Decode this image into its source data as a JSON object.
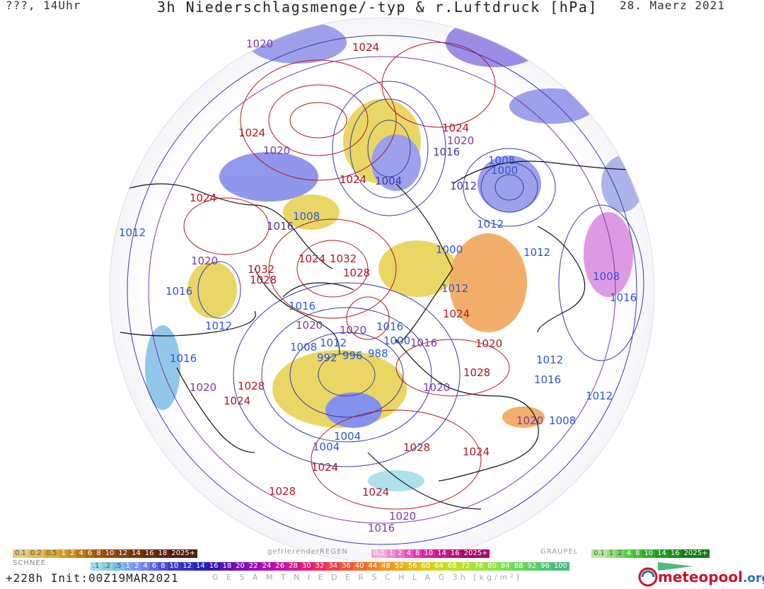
{
  "header": {
    "left": "???, 14Uhr",
    "title": "3h Niederschlagsmenge/-typ & r.Luftdruck [hPa]",
    "date": "28. Maerz 2021"
  },
  "map": {
    "background": "#ffffff",
    "isobar_colors": {
      "high": "#b0171f",
      "low": "#3a3aa8",
      "mid": "#7a3aa8",
      "lowblue": "#2d55d8"
    },
    "pressure_labels": [
      {
        "text": "1020",
        "tone": "mid"
      },
      {
        "text": "1024",
        "tone": "high"
      },
      {
        "text": "1024",
        "tone": "high"
      },
      {
        "text": "1020",
        "tone": "mid"
      },
      {
        "text": "1024",
        "tone": "high"
      },
      {
        "text": "1004",
        "tone": "low"
      },
      {
        "text": "1024",
        "tone": "high"
      },
      {
        "text": "1020",
        "tone": "mid"
      },
      {
        "text": "1016",
        "tone": "low"
      },
      {
        "text": "1012",
        "tone": "low"
      },
      {
        "text": "1008",
        "tone": "lowblue"
      },
      {
        "text": "1000",
        "tone": "lowblue"
      },
      {
        "text": "1012",
        "tone": "lowblue"
      },
      {
        "text": "1024",
        "tone": "high"
      },
      {
        "text": "1008",
        "tone": "lowblue"
      },
      {
        "text": "1016",
        "tone": "low"
      },
      {
        "text": "1012",
        "tone": "lowblue"
      },
      {
        "text": "1020",
        "tone": "mid"
      },
      {
        "text": "1032",
        "tone": "high"
      },
      {
        "text": "1024",
        "tone": "high"
      },
      {
        "text": "1032",
        "tone": "high"
      },
      {
        "text": "1028",
        "tone": "high"
      },
      {
        "text": "1028",
        "tone": "high"
      },
      {
        "text": "1016",
        "tone": "lowblue"
      },
      {
        "text": "1000",
        "tone": "lowblue"
      },
      {
        "text": "1012",
        "tone": "lowblue"
      },
      {
        "text": "1012",
        "tone": "lowblue"
      },
      {
        "text": "1008",
        "tone": "lowblue"
      },
      {
        "text": "1016",
        "tone": "lowblue"
      },
      {
        "text": "1024",
        "tone": "high"
      },
      {
        "text": "1016",
        "tone": "lowblue"
      },
      {
        "text": "1012",
        "tone": "lowblue"
      },
      {
        "text": "1016",
        "tone": "lowblue"
      },
      {
        "text": "1020",
        "tone": "mid"
      },
      {
        "text": "1020",
        "tone": "mid"
      },
      {
        "text": "1016",
        "tone": "mid"
      },
      {
        "text": "1012",
        "tone": "lowblue"
      },
      {
        "text": "1008",
        "tone": "lowblue"
      },
      {
        "text": "1000",
        "tone": "lowblue"
      },
      {
        "text": "992",
        "tone": "lowblue"
      },
      {
        "text": "996",
        "tone": "lowblue"
      },
      {
        "text": "988",
        "tone": "lowblue"
      },
      {
        "text": "1020",
        "tone": "high"
      },
      {
        "text": "1012",
        "tone": "lowblue"
      },
      {
        "text": "1016",
        "tone": "lowblue"
      },
      {
        "text": "1016",
        "tone": "lowblue"
      },
      {
        "text": "1020",
        "tone": "mid"
      },
      {
        "text": "1028",
        "tone": "high"
      },
      {
        "text": "1020",
        "tone": "mid"
      },
      {
        "text": "1024",
        "tone": "high"
      },
      {
        "text": "1028",
        "tone": "high"
      },
      {
        "text": "1004",
        "tone": "lowblue"
      },
      {
        "text": "1012",
        "tone": "lowblue"
      },
      {
        "text": "1024",
        "tone": "high"
      },
      {
        "text": "1020",
        "tone": "mid"
      },
      {
        "text": "1008",
        "tone": "lowblue"
      },
      {
        "text": "1004",
        "tone": "lowblue"
      },
      {
        "text": "1028",
        "tone": "high"
      },
      {
        "text": "1024",
        "tone": "high"
      },
      {
        "text": "1028",
        "tone": "high"
      },
      {
        "text": "1024",
        "tone": "high"
      },
      {
        "text": "1020",
        "tone": "mid"
      },
      {
        "text": "1016",
        "tone": "mid"
      }
    ]
  },
  "legend": {
    "snow_label": "SCHNEE",
    "snow_values": [
      "0.1",
      "0.2",
      "0.5",
      "1",
      "2",
      "4",
      "6",
      "8",
      "10",
      "12",
      "14",
      "16",
      "18",
      "2025+"
    ],
    "snow_colors": [
      "#e8c97a",
      "#e0bb5e",
      "#d9ab3f",
      "#d19a2c",
      "#c88920",
      "#bb7718",
      "#ad6612",
      "#9f560e",
      "#914a0c",
      "#843f0a",
      "#763508",
      "#692c07",
      "#5c2406",
      "#4f1d05"
    ],
    "freezing_label": "gefrierenderREGEN",
    "freezing_values": [
      "0.1",
      "1",
      "2",
      "4",
      "8",
      "10",
      "14",
      "16",
      "2025+"
    ],
    "freezing_colors": [
      "#f7a9d8",
      "#f28bcf",
      "#ec6dc5",
      "#e652b9",
      "#de3aac",
      "#d4279c",
      "#c7198b",
      "#b80f79",
      "#a80867"
    ],
    "graupel_label": "GRAUPEL",
    "graupel_values": [
      "0.1",
      "1",
      "2",
      "4",
      "8",
      "10",
      "14",
      "16",
      "2025+"
    ],
    "graupel_colors": [
      "#b4ea9d",
      "#96e07c",
      "#78d55d",
      "#5cc944",
      "#45bb33",
      "#33aa28",
      "#259a20",
      "#1b8a1a",
      "#137a15"
    ],
    "total_label": "G E S A M T N I E D E R S C H L A G   3h   [kg/m²]",
    "total_values": [
      ".1",
      ".2",
      ".5",
      "1",
      "2",
      "4",
      "6",
      "8",
      "10",
      "12",
      "14",
      "16",
      "18",
      "20",
      "22",
      "24",
      "26",
      "28",
      "30",
      "32",
      "34",
      "36",
      "40",
      "44",
      "48",
      "52",
      "56",
      "60",
      "64",
      "68",
      "72",
      "76",
      "80",
      "84",
      "88",
      "92",
      "96",
      "100"
    ],
    "total_colors": [
      "#9fdde6",
      "#8ccfe0",
      "#7fbde6",
      "#7aa8ea",
      "#7a94ec",
      "#6f7eea",
      "#5d66e2",
      "#4c50d8",
      "#3b3bce",
      "#3030c0",
      "#2520b5",
      "#3a14b0",
      "#5a10b2",
      "#7a10b4",
      "#9610b5",
      "#b010b2",
      "#c513a5",
      "#d5188f",
      "#e11f78",
      "#e92c60",
      "#ef3f4c",
      "#f0553b",
      "#f06b2e",
      "#ef8126",
      "#ee9720",
      "#eaaa1e",
      "#e4bc1d",
      "#dccb1e",
      "#d2d722",
      "#c4df28",
      "#b4e330",
      "#a2e43a",
      "#90e245",
      "#7ede51",
      "#6dd75d",
      "#5fcf69",
      "#54c574",
      "#4dba7f"
    ]
  },
  "footer": {
    "run": "+228h Init:00Z19MAR2021",
    "brand": "meteo",
    "brand_suffix": "pool",
    "brand_tld": ".org"
  }
}
